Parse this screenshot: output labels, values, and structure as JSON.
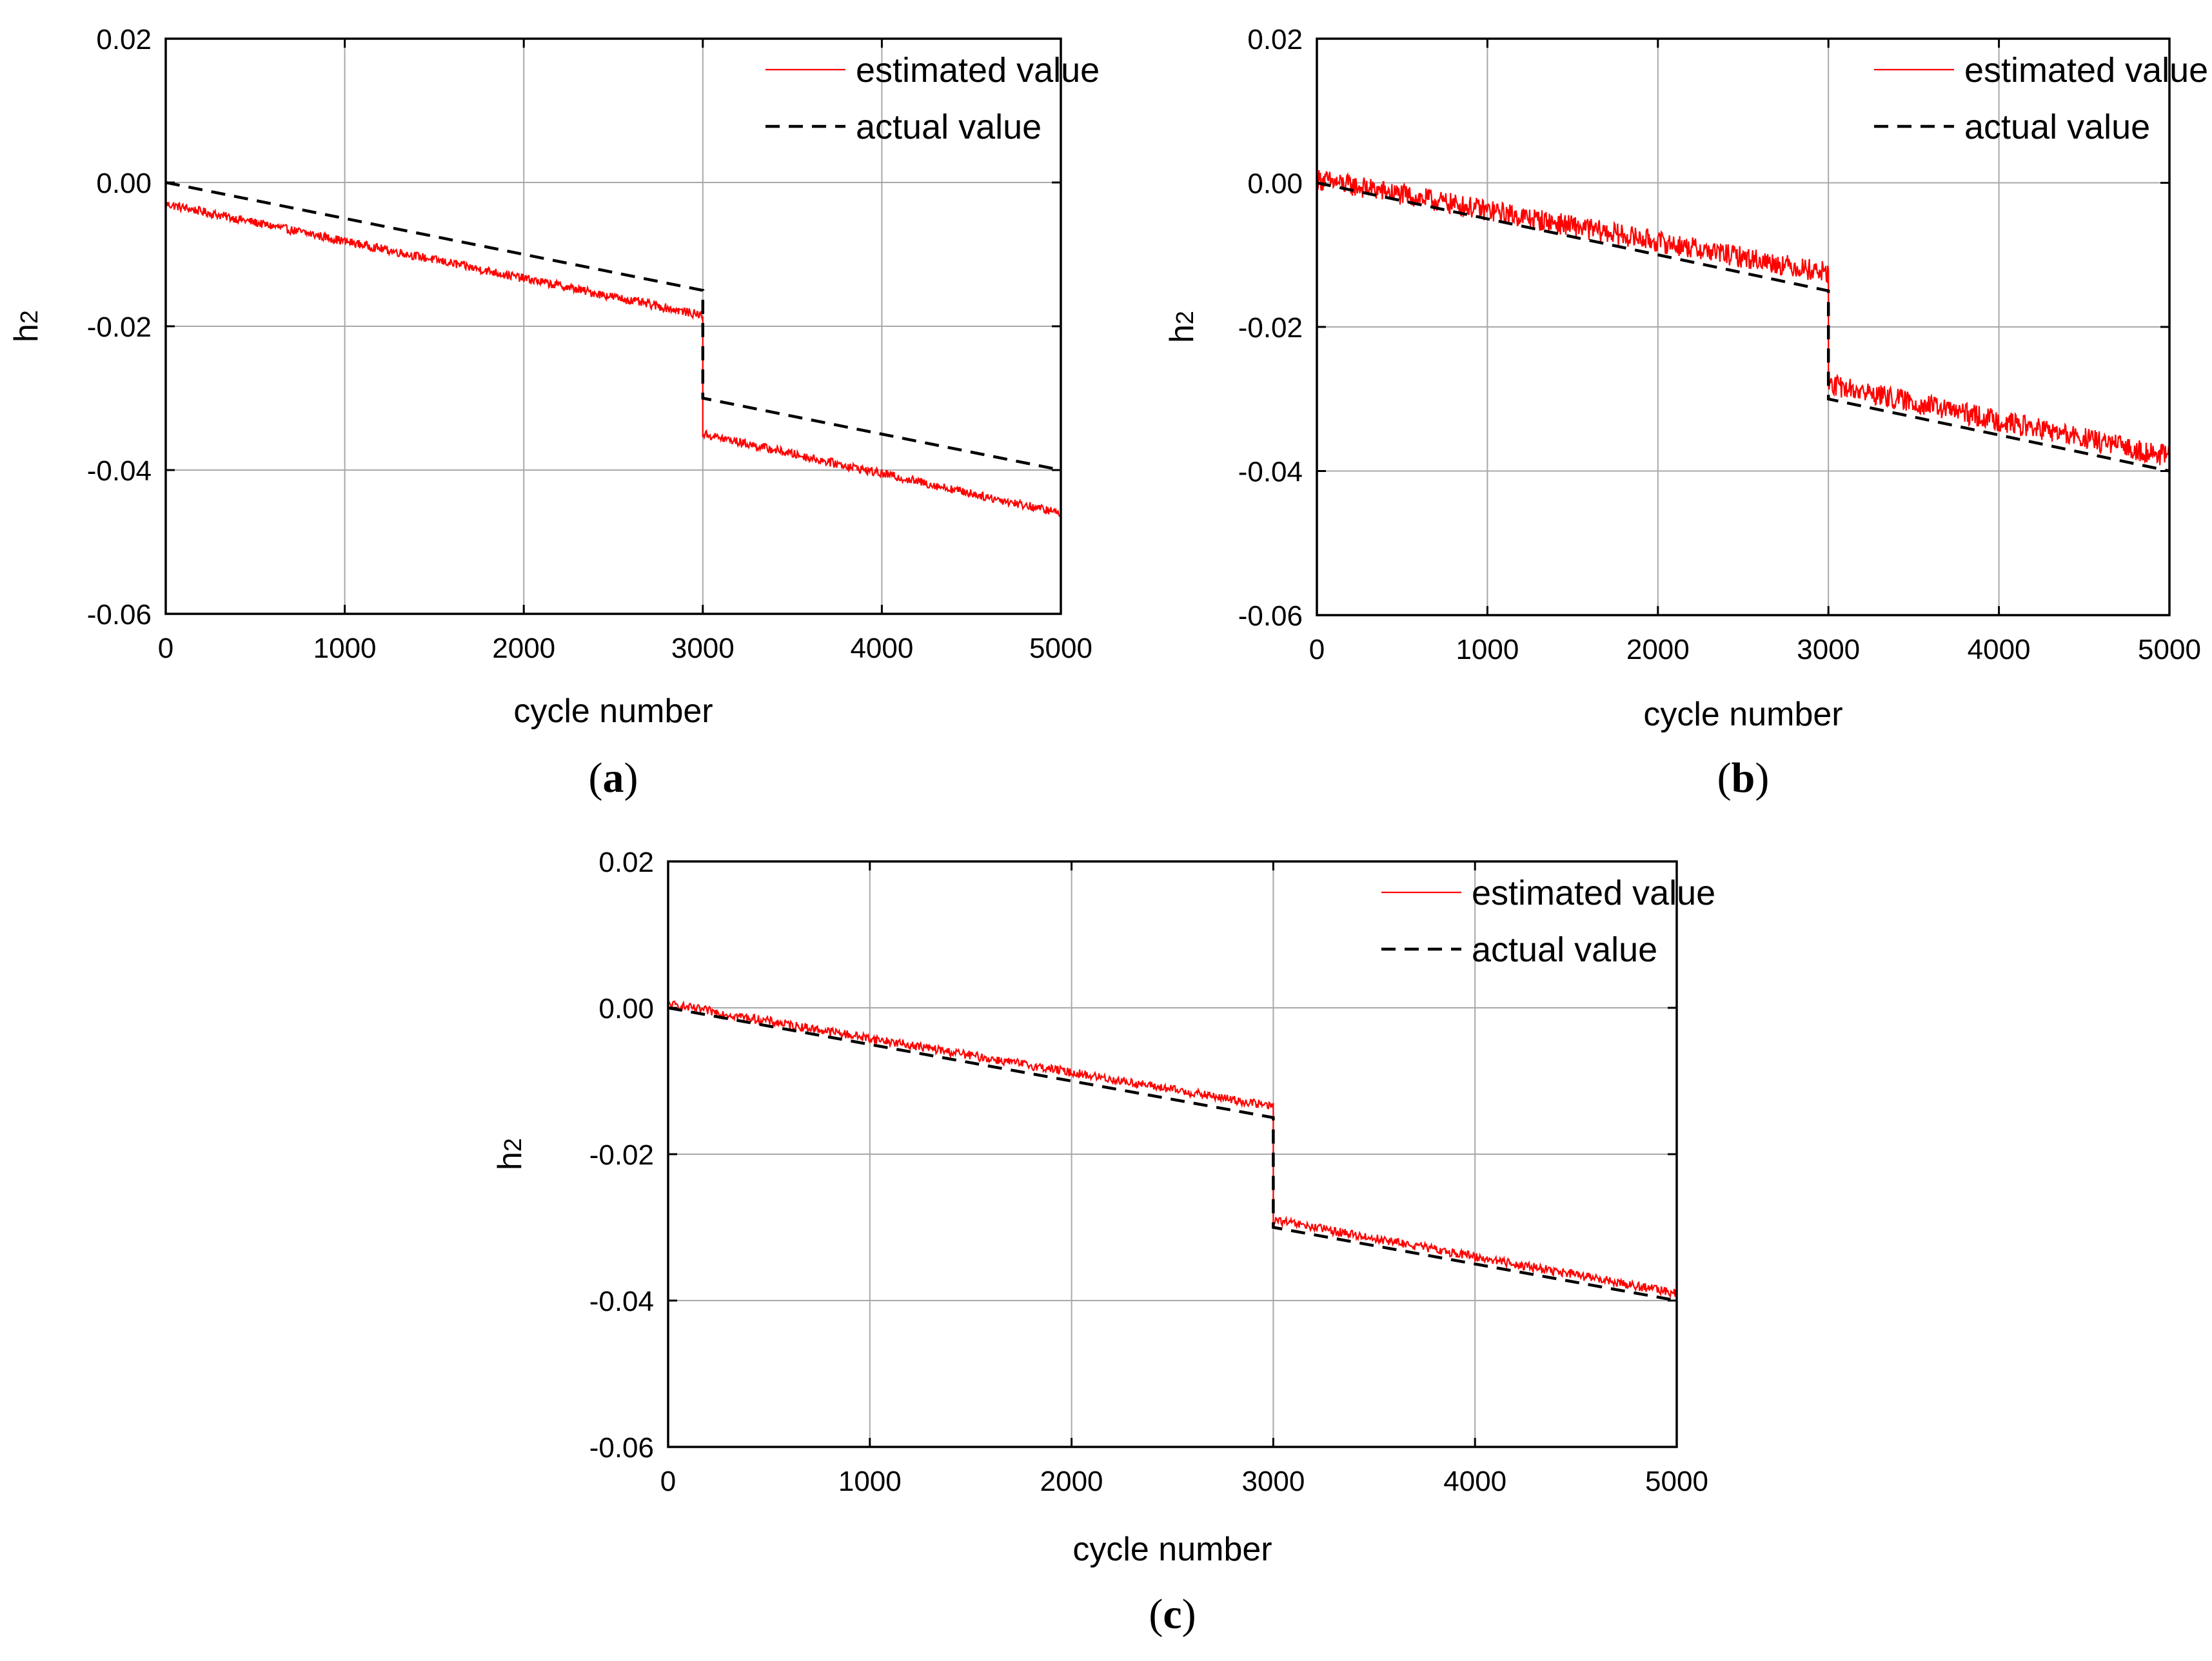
{
  "figure": {
    "panels": [
      "a",
      "b",
      "c"
    ]
  },
  "chart_data": [
    {
      "id": "a",
      "type": "line",
      "panel_label": "a",
      "xlabel": "cycle number",
      "ylabel": "h2",
      "ylabel_base": "h",
      "ylabel_sub": "2",
      "xlim": [
        0,
        5000
      ],
      "ylim": [
        -0.06,
        0.02
      ],
      "xticks": [
        0,
        1000,
        2000,
        3000,
        4000,
        5000
      ],
      "yticks": [
        -0.06,
        -0.04,
        -0.02,
        0.0,
        0.02
      ],
      "xtick_labels": [
        "0",
        "1000",
        "2000",
        "3000",
        "4000",
        "5000"
      ],
      "ytick_labels": [
        "-0.06",
        "-0.04",
        "-0.02",
        "0.00",
        "0.02"
      ],
      "grid": true,
      "legend": "top-right",
      "series": [
        {
          "name": "estimated value",
          "style": "solid",
          "color": "#ff0000",
          "x": [
            0,
            3000,
            3000,
            5000
          ],
          "values": [
            -0.003,
            -0.0185,
            -0.035,
            -0.046
          ],
          "noise": 0.0006
        },
        {
          "name": "actual value",
          "style": "dashed",
          "color": "#000000",
          "x": [
            0,
            3000,
            3000,
            5000
          ],
          "values": [
            0.0,
            -0.015,
            -0.03,
            -0.04
          ]
        }
      ]
    },
    {
      "id": "b",
      "type": "line",
      "panel_label": "b",
      "xlabel": "cycle number",
      "ylabel": "h2",
      "ylabel_base": "h",
      "ylabel_sub": "2",
      "xlim": [
        0,
        5000
      ],
      "ylim": [
        -0.06,
        0.02
      ],
      "xticks": [
        0,
        1000,
        2000,
        3000,
        4000,
        5000
      ],
      "yticks": [
        -0.06,
        -0.04,
        -0.02,
        0.0,
        0.02
      ],
      "xtick_labels": [
        "0",
        "1000",
        "2000",
        "3000",
        "4000",
        "5000"
      ],
      "ytick_labels": [
        "-0.06",
        "-0.04",
        "-0.02",
        "0.00",
        "0.02"
      ],
      "grid": true,
      "legend": "top-right",
      "series": [
        {
          "name": "estimated value",
          "style": "solid",
          "color": "#ff0000",
          "x": [
            0,
            3000,
            3000,
            5000
          ],
          "values": [
            0.0005,
            -0.0125,
            -0.028,
            -0.038
          ],
          "noise": 0.0015
        },
        {
          "name": "actual value",
          "style": "dashed",
          "color": "#000000",
          "x": [
            0,
            3000,
            3000,
            5000
          ],
          "values": [
            0.0,
            -0.015,
            -0.03,
            -0.04
          ]
        }
      ]
    },
    {
      "id": "c",
      "type": "line",
      "panel_label": "c",
      "xlabel": "cycle number",
      "ylabel": "h2",
      "ylabel_base": "h",
      "ylabel_sub": "2",
      "xlim": [
        0,
        5000
      ],
      "ylim": [
        -0.06,
        0.02
      ],
      "xticks": [
        0,
        1000,
        2000,
        3000,
        4000,
        5000
      ],
      "yticks": [
        -0.06,
        -0.04,
        -0.02,
        0.0,
        0.02
      ],
      "xtick_labels": [
        "0",
        "1000",
        "2000",
        "3000",
        "4000",
        "5000"
      ],
      "ytick_labels": [
        "-0.06",
        "-0.04",
        "-0.02",
        "0.00",
        "0.02"
      ],
      "grid": true,
      "legend": "top-right",
      "series": [
        {
          "name": "estimated value",
          "style": "solid",
          "color": "#ff0000",
          "x": [
            0,
            3000,
            3000,
            5000
          ],
          "values": [
            0.0005,
            -0.0135,
            -0.029,
            -0.039
          ],
          "noise": 0.0006
        },
        {
          "name": "actual value",
          "style": "dashed",
          "color": "#000000",
          "x": [
            0,
            3000,
            3000,
            5000
          ],
          "values": [
            0.0,
            -0.015,
            -0.03,
            -0.04
          ]
        }
      ]
    }
  ]
}
